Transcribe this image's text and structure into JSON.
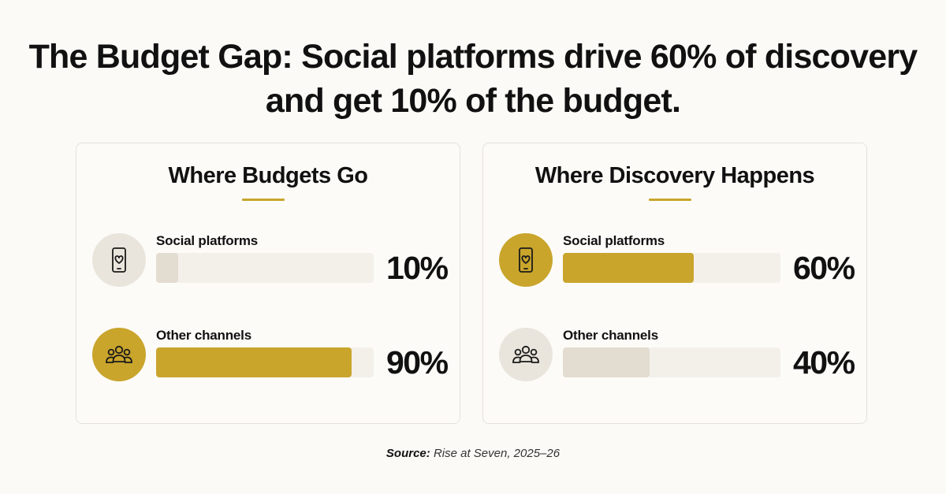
{
  "headline": {
    "line1": "The Budget Gap: Social platforms drive 60% of discovery",
    "line2": "and get 10% of the budget."
  },
  "colors": {
    "accent": "#c9a52c",
    "muted_fill": "#e3dcd0",
    "track": "#f3f0ea",
    "icon_muted_bg": "#e9e5dc"
  },
  "chart_data": [
    {
      "type": "bar",
      "orientation": "horizontal",
      "title": "Where Budgets Go",
      "categories": [
        "Social platforms",
        "Other channels"
      ],
      "values": [
        10,
        90
      ],
      "value_labels": [
        "10%",
        "90%"
      ],
      "unit": "%",
      "xlim": [
        0,
        100
      ],
      "highlighted": "Other channels",
      "icons": [
        "smartphone-heart-icon",
        "people-group-icon"
      ]
    },
    {
      "type": "bar",
      "orientation": "horizontal",
      "title": "Where Discovery Happens",
      "categories": [
        "Social platforms",
        "Other channels"
      ],
      "values": [
        60,
        40
      ],
      "value_labels": [
        "60%",
        "40%"
      ],
      "unit": "%",
      "xlim": [
        0,
        100
      ],
      "highlighted": "Social platforms",
      "icons": [
        "smartphone-heart-icon",
        "people-group-icon"
      ]
    }
  ],
  "source": {
    "label": "Source:",
    "text": "Rise at Seven, 2025–26"
  }
}
